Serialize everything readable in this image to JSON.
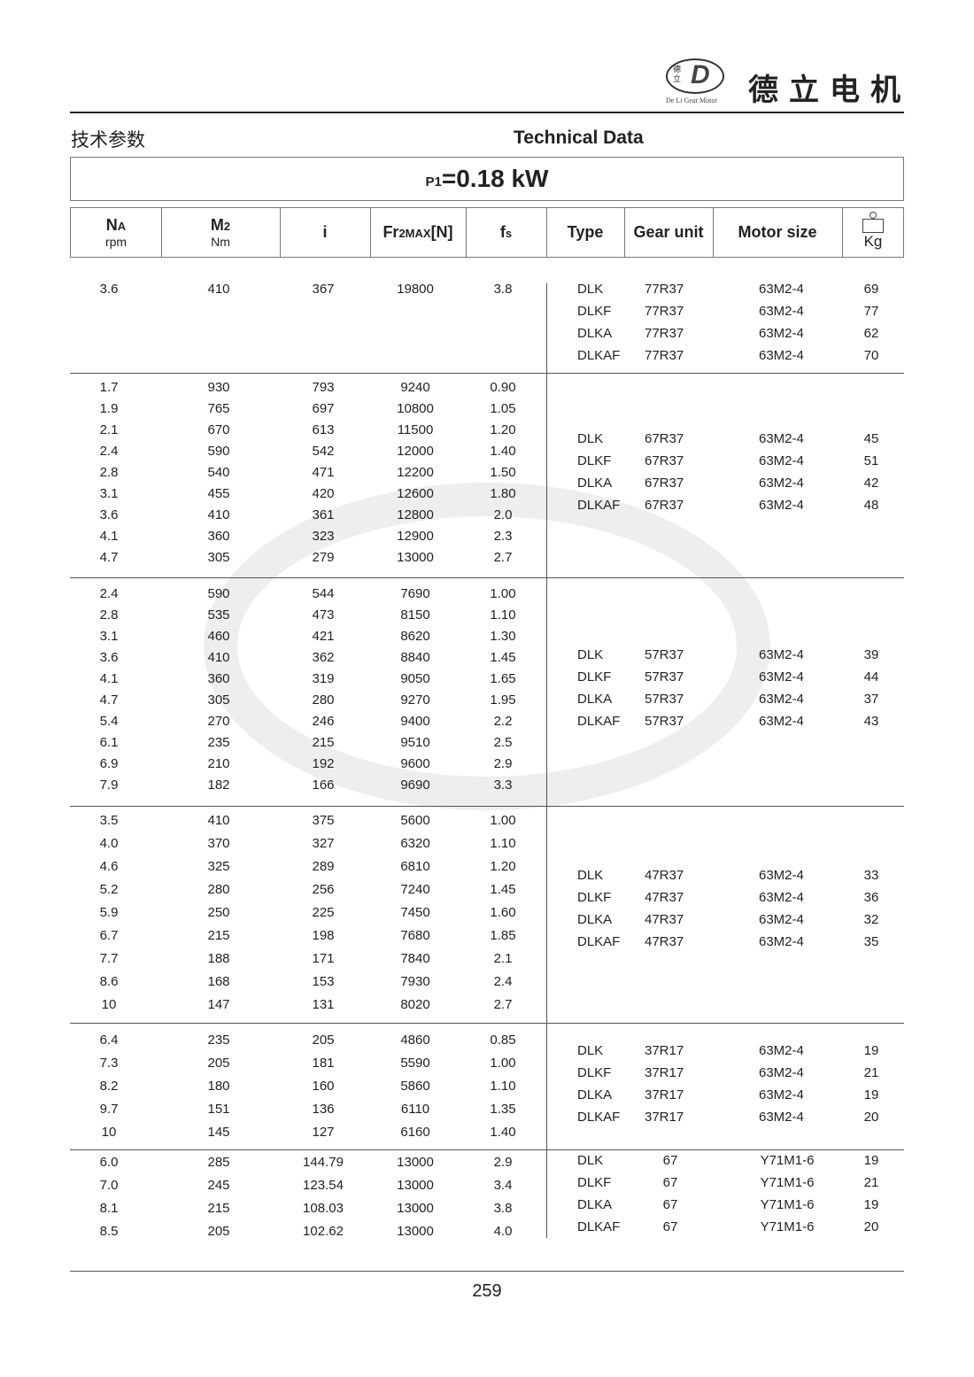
{
  "brand": {
    "name_cn": "德立电机",
    "logo_text": "De Li Gear Motor",
    "logo_chars": "德立"
  },
  "header": {
    "title_cn": "技术参数",
    "title_en": "Technical Data"
  },
  "power": {
    "label": "P1",
    "value": "=0.18 kW"
  },
  "columns": {
    "na": {
      "label": "N",
      "sub": "A",
      "unit": "rpm"
    },
    "m2": {
      "label": "M",
      "sub": "2",
      "unit": "Nm"
    },
    "i": {
      "label": "i"
    },
    "fr": {
      "label": "Fr",
      "sub": "2MAX",
      "suffix": "[N]"
    },
    "fs": {
      "label": "f",
      "sub": "s"
    },
    "type": {
      "label": "Type"
    },
    "gear": {
      "label": "Gear unit"
    },
    "motor": {
      "label": "Motor size"
    },
    "kg": {
      "label": "Kg"
    }
  },
  "groups": [
    {
      "rows": [
        [
          "3.6",
          "410",
          "367",
          "19800",
          "3.8"
        ]
      ],
      "variants": [
        [
          "DLK",
          "77R37",
          "63M2-4",
          "69"
        ],
        [
          "DLKF",
          "77R37",
          "63M2-4",
          "77"
        ],
        [
          "DLKA",
          "77R37",
          "63M2-4",
          "62"
        ],
        [
          "DLKAF",
          "77R37",
          "63M2-4",
          "70"
        ]
      ]
    },
    {
      "rows": [
        [
          "1.7",
          "930",
          "793",
          "9240",
          "0.90"
        ],
        [
          "1.9",
          "765",
          "697",
          "10800",
          "1.05"
        ],
        [
          "2.1",
          "670",
          "613",
          "11500",
          "1.20"
        ],
        [
          "2.4",
          "590",
          "542",
          "12000",
          "1.40"
        ],
        [
          "2.8",
          "540",
          "471",
          "12200",
          "1.50"
        ],
        [
          "3.1",
          "455",
          "420",
          "12600",
          "1.80"
        ],
        [
          "3.6",
          "410",
          "361",
          "12800",
          "2.0"
        ],
        [
          "4.1",
          "360",
          "323",
          "12900",
          "2.3"
        ],
        [
          "4.7",
          "305",
          "279",
          "13000",
          "2.7"
        ]
      ],
      "variants": [
        [
          "DLK",
          "67R37",
          "63M2-4",
          "45"
        ],
        [
          "DLKF",
          "67R37",
          "63M2-4",
          "51"
        ],
        [
          "DLKA",
          "67R37",
          "63M2-4",
          "42"
        ],
        [
          "DLKAF",
          "67R37",
          "63M2-4",
          "48"
        ]
      ]
    },
    {
      "rows": [
        [
          "2.4",
          "590",
          "544",
          "7690",
          "1.00"
        ],
        [
          "2.8",
          "535",
          "473",
          "8150",
          "1.10"
        ],
        [
          "3.1",
          "460",
          "421",
          "8620",
          "1.30"
        ],
        [
          "3.6",
          "410",
          "362",
          "8840",
          "1.45"
        ],
        [
          "4.1",
          "360",
          "319",
          "9050",
          "1.65"
        ],
        [
          "4.7",
          "305",
          "280",
          "9270",
          "1.95"
        ],
        [
          "5.4",
          "270",
          "246",
          "9400",
          "2.2"
        ],
        [
          "6.1",
          "235",
          "215",
          "9510",
          "2.5"
        ],
        [
          "6.9",
          "210",
          "192",
          "9600",
          "2.9"
        ],
        [
          "7.9",
          "182",
          "166",
          "9690",
          "3.3"
        ]
      ],
      "variants": [
        [
          "DLK",
          "57R37",
          "63M2-4",
          "39"
        ],
        [
          "DLKF",
          "57R37",
          "63M2-4",
          "44"
        ],
        [
          "DLKA",
          "57R37",
          "63M2-4",
          "37"
        ],
        [
          "DLKAF",
          "57R37",
          "63M2-4",
          "43"
        ]
      ]
    },
    {
      "rows": [
        [
          "3.5",
          "410",
          "375",
          "5600",
          "1.00"
        ],
        [
          "4.0",
          "370",
          "327",
          "6320",
          "1.10"
        ],
        [
          "4.6",
          "325",
          "289",
          "6810",
          "1.20"
        ],
        [
          "5.2",
          "280",
          "256",
          "7240",
          "1.45"
        ],
        [
          "5.9",
          "250",
          "225",
          "7450",
          "1.60"
        ],
        [
          "6.7",
          "215",
          "198",
          "7680",
          "1.85"
        ],
        [
          "7.7",
          "188",
          "171",
          "7840",
          "2.1"
        ],
        [
          "8.6",
          "168",
          "153",
          "7930",
          "2.4"
        ],
        [
          "10",
          "147",
          "131",
          "8020",
          "2.7"
        ]
      ],
      "variants": [
        [
          "DLK",
          "47R37",
          "63M2-4",
          "33"
        ],
        [
          "DLKF",
          "47R37",
          "63M2-4",
          "36"
        ],
        [
          "DLKA",
          "47R37",
          "63M2-4",
          "32"
        ],
        [
          "DLKAF",
          "47R37",
          "63M2-4",
          "35"
        ]
      ]
    },
    {
      "rows": [
        [
          "6.4",
          "235",
          "205",
          "4860",
          "0.85"
        ],
        [
          "7.3",
          "205",
          "181",
          "5590",
          "1.00"
        ],
        [
          "8.2",
          "180",
          "160",
          "5860",
          "1.10"
        ],
        [
          "9.7",
          "151",
          "136",
          "6110",
          "1.35"
        ],
        [
          "10",
          "145",
          "127",
          "6160",
          "1.40"
        ]
      ],
      "variants": [
        [
          "DLK",
          "37R17",
          "63M2-4",
          "19"
        ],
        [
          "DLKF",
          "37R17",
          "63M2-4",
          "21"
        ],
        [
          "DLKA",
          "37R17",
          "63M2-4",
          "19"
        ],
        [
          "DLKAF",
          "37R17",
          "63M2-4",
          "20"
        ]
      ]
    },
    {
      "rows": [
        [
          "6.0",
          "285",
          "144.79",
          "13000",
          "2.9"
        ],
        [
          "7.0",
          "245",
          "123.54",
          "13000",
          "3.4"
        ],
        [
          "8.1",
          "215",
          "108.03",
          "13000",
          "3.8"
        ],
        [
          "8.5",
          "205",
          "102.62",
          "13000",
          "4.0"
        ]
      ],
      "variants": [
        [
          "DLK",
          "67",
          "Y71M1-6",
          "19"
        ],
        [
          "DLKF",
          "67",
          "Y71M1-6",
          "21"
        ],
        [
          "DLKA",
          "67",
          "Y71M1-6",
          "19"
        ],
        [
          "DLKAF",
          "67",
          "Y71M1-6",
          "20"
        ]
      ]
    }
  ],
  "footer": {
    "page_number": "259"
  }
}
